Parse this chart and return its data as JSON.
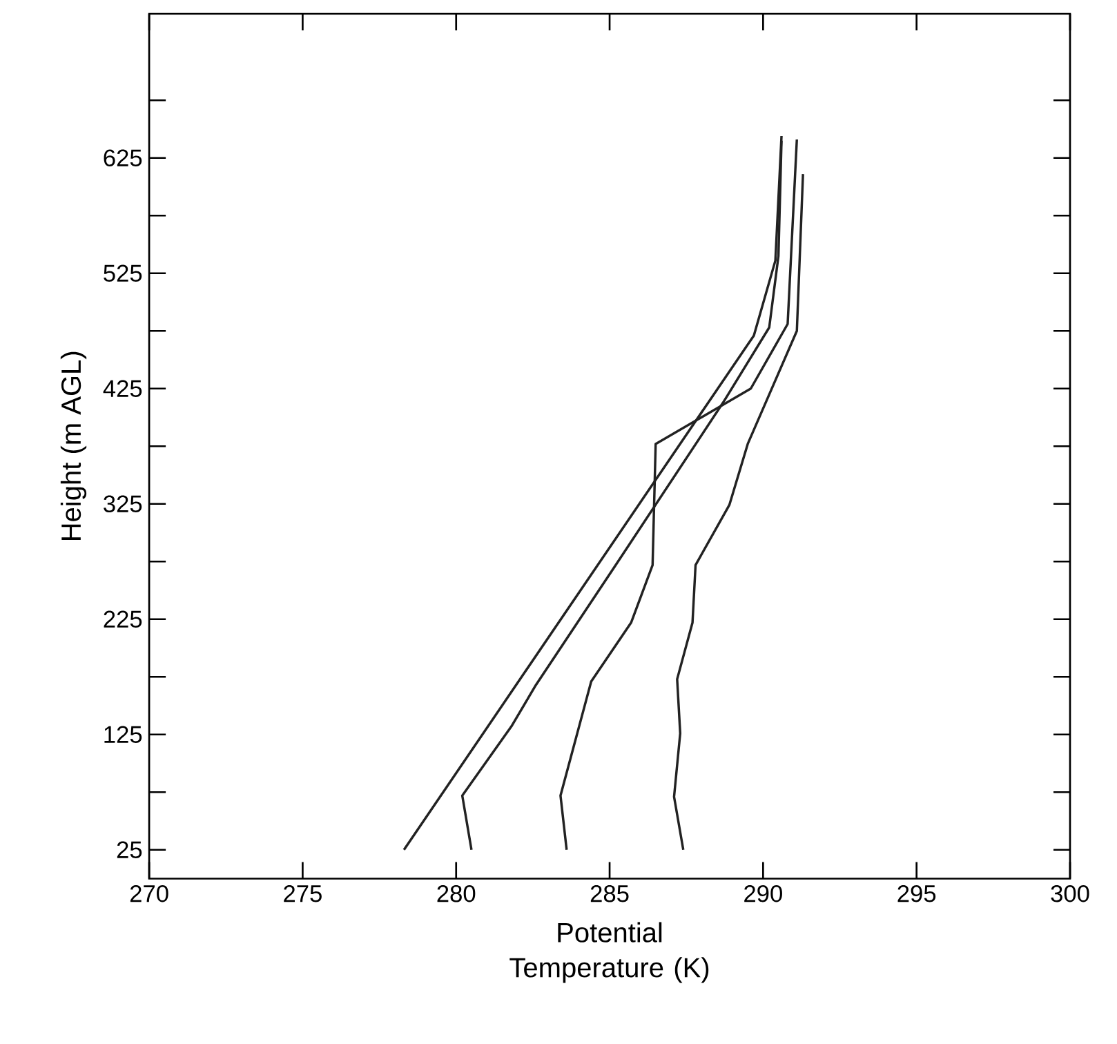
{
  "chart_data": {
    "type": "line",
    "xlabel": "Potential Temperature (K)",
    "ylabel": "Height (m AGL)",
    "xlim": [
      270,
      300
    ],
    "xticks": [
      270,
      275,
      280,
      285,
      290,
      295,
      300
    ],
    "ylim": [
      0,
      750
    ],
    "yticks": [
      25,
      {
        "value": 75,
        "label": null
      },
      125,
      {
        "value": 175,
        "label": null
      },
      225,
      {
        "value": 275,
        "label": null
      },
      325,
      {
        "value": 375,
        "label": null
      },
      425,
      {
        "value": 475,
        "label": null
      },
      525,
      {
        "value": 575,
        "label": null
      },
      625,
      {
        "value": 675,
        "label": null
      }
    ],
    "grid": false,
    "marker": "none",
    "line_style": "solid",
    "series": [
      {
        "color": "#222222",
        "x": [
          278.3,
          289.7,
          290.4,
          290.6
        ],
        "values": [
          25,
          471,
          536,
          644
        ]
      },
      {
        "color": "#222222",
        "x": [
          280.5,
          280.2,
          281.8,
          282.6,
          285.2,
          288.7,
          290.2,
          290.5,
          290.6
        ],
        "values": [
          25,
          72,
          132,
          168,
          272,
          413,
          478,
          540,
          640
        ]
      },
      {
        "color": "#222222",
        "x": [
          283.6,
          283.4,
          284.4,
          285.7,
          286.4,
          286.5,
          289.6,
          290.8,
          291.1
        ],
        "values": [
          25,
          72,
          171,
          222,
          272,
          377,
          425,
          481,
          641
        ]
      },
      {
        "color": "#222222",
        "x": [
          287.4,
          287.1,
          287.3,
          287.2,
          287.7,
          287.8,
          288.9,
          289.5,
          291.1,
          291.3
        ],
        "values": [
          25,
          71,
          126,
          173,
          222,
          272,
          324,
          377,
          475,
          611
        ]
      }
    ]
  }
}
